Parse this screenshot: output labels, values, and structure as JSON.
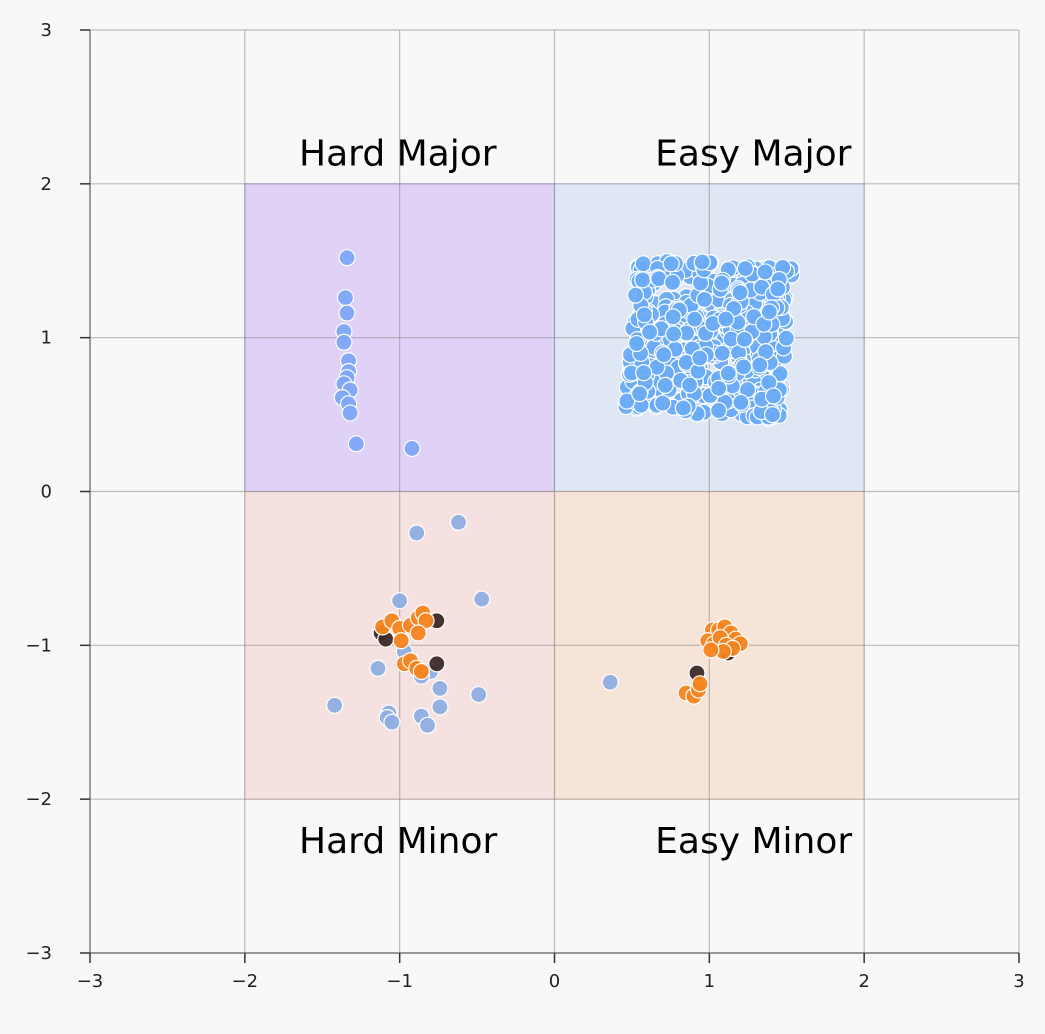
{
  "chart_data": {
    "type": "scatter",
    "title": "",
    "xlabel": "",
    "ylabel": "",
    "xlim": [
      -3,
      3
    ],
    "ylim": [
      -3,
      3
    ],
    "xticks": [
      -3,
      -2,
      -1,
      0,
      1,
      2,
      3
    ],
    "yticks": [
      -3,
      -2,
      -1,
      0,
      1,
      2,
      3
    ],
    "grid": true,
    "regions": [
      {
        "label": "Hard Major",
        "x": [
          -2,
          0
        ],
        "y": [
          0,
          2
        ],
        "color": "#a06cf0",
        "opacity": 0.28
      },
      {
        "label": "Easy Major",
        "x": [
          0,
          2
        ],
        "y": [
          0,
          2
        ],
        "color": "#9dbbee",
        "opacity": 0.28
      },
      {
        "label": "Hard Minor",
        "x": [
          -2,
          0
        ],
        "y": [
          -2,
          0
        ],
        "color": "#f0b0aa",
        "opacity": 0.3
      },
      {
        "label": "Easy Minor",
        "x": [
          0,
          2
        ],
        "y": [
          -2,
          0
        ],
        "color": "#f2c09a",
        "opacity": 0.35
      }
    ],
    "region_labels": [
      {
        "text": "Hard Major",
        "x": -1.65,
        "y": 2.12
      },
      {
        "text": "Easy Major",
        "x": 0.65,
        "y": 2.12
      },
      {
        "text": "Hard Minor",
        "x": -1.65,
        "y": -2.35
      },
      {
        "text": "Easy Minor",
        "x": 0.65,
        "y": -2.35
      }
    ],
    "series": [
      {
        "color": "#7ea6f5",
        "points": [
          [
            -1.34,
            1.52
          ],
          [
            -1.35,
            1.26
          ],
          [
            -1.34,
            1.16
          ],
          [
            -1.36,
            1.04
          ],
          [
            -1.36,
            0.97
          ],
          [
            -1.33,
            0.85
          ],
          [
            -1.33,
            0.78
          ],
          [
            -1.34,
            0.74
          ],
          [
            -1.36,
            0.7
          ],
          [
            -1.32,
            0.66
          ],
          [
            -1.37,
            0.61
          ],
          [
            -1.33,
            0.57
          ],
          [
            -1.32,
            0.51
          ],
          [
            -1.28,
            0.31
          ],
          [
            -0.92,
            0.28
          ]
        ]
      },
      {
        "color": "#8eaee0",
        "points": [
          [
            -0.89,
            -0.27
          ],
          [
            -0.62,
            -0.2
          ],
          [
            -0.47,
            -0.7
          ],
          [
            -1.0,
            -0.71
          ],
          [
            -0.97,
            -1.04
          ],
          [
            -1.14,
            -1.15
          ],
          [
            -0.8,
            -1.17
          ],
          [
            -0.86,
            -1.2
          ],
          [
            -0.74,
            -1.28
          ],
          [
            -0.49,
            -1.32
          ],
          [
            -1.42,
            -1.39
          ],
          [
            -0.74,
            -1.4
          ],
          [
            -1.07,
            -1.44
          ],
          [
            -1.08,
            -1.47
          ],
          [
            -0.86,
            -1.46
          ],
          [
            -1.05,
            -1.5
          ],
          [
            -0.82,
            -1.52
          ],
          [
            0.36,
            -1.24
          ]
        ]
      },
      {
        "color": "#3c2a26",
        "points": [
          [
            -1.12,
            -0.92
          ],
          [
            -1.09,
            -0.96
          ],
          [
            -0.76,
            -0.84
          ],
          [
            -0.76,
            -1.12
          ],
          [
            0.92,
            -1.18
          ],
          [
            1.12,
            -1.05
          ]
        ]
      },
      {
        "color": "#f5841f",
        "points": [
          [
            -1.11,
            -0.88
          ],
          [
            -1.05,
            -0.84
          ],
          [
            -1.0,
            -0.89
          ],
          [
            -0.99,
            -0.97
          ],
          [
            -0.93,
            -0.87
          ],
          [
            -0.88,
            -0.82
          ],
          [
            -0.85,
            -0.79
          ],
          [
            -0.83,
            -0.84
          ],
          [
            -0.88,
            -0.92
          ],
          [
            -0.97,
            -1.12
          ],
          [
            -0.93,
            -1.1
          ],
          [
            -0.89,
            -1.15
          ],
          [
            -0.86,
            -1.17
          ],
          [
            1.02,
            -0.9
          ],
          [
            1.06,
            -0.9
          ],
          [
            1.1,
            -0.88
          ],
          [
            1.14,
            -0.92
          ],
          [
            1.17,
            -0.96
          ],
          [
            1.2,
            -0.99
          ],
          [
            0.99,
            -0.97
          ],
          [
            1.03,
            -0.99
          ],
          [
            1.07,
            -0.95
          ],
          [
            1.11,
            -1.0
          ],
          [
            1.15,
            -1.02
          ],
          [
            1.09,
            -1.04
          ],
          [
            1.01,
            -1.03
          ],
          [
            0.85,
            -1.31
          ],
          [
            0.9,
            -1.33
          ],
          [
            0.93,
            -1.29
          ],
          [
            0.94,
            -1.25
          ]
        ]
      }
    ]
  }
}
